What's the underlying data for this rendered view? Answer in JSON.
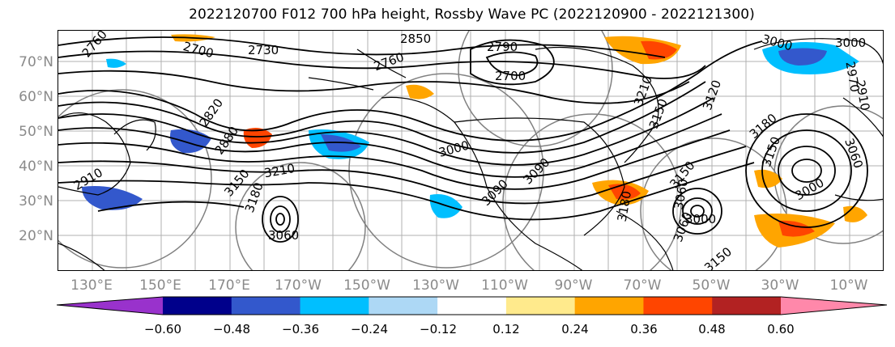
{
  "title": "2022120700 F012 700 hPa height, Rossby Wave PC (2022120900 - 2022121300)",
  "lat_labels": [
    "70°N",
    "60°N",
    "50°N",
    "40°N",
    "30°N",
    "20°N"
  ],
  "lon_labels": [
    "130°E",
    "150°E",
    "170°E",
    "170°W",
    "150°W",
    "130°W",
    "110°W",
    "90°W",
    "70°W",
    "50°W",
    "30°W",
    "10°W"
  ],
  "contour_labels": [
    "2760",
    "2700",
    "2730",
    "2850",
    "2760",
    "2790",
    "2700",
    "3000",
    "3000",
    "2820",
    "2880",
    "3000",
    "3150",
    "3210",
    "3180",
    "3060",
    "3090",
    "3150",
    "3060",
    "3000",
    "3150",
    "3180",
    "3060",
    "3150",
    "3060",
    "3000",
    "2910",
    "2970",
    "3210",
    "3150",
    "3120",
    "3090",
    "3180",
    "2910"
  ],
  "colorbar": {
    "colors": [
      "#9932cc",
      "#00008b",
      "#3358cc",
      "#00bfff",
      "#add8f5",
      "#ffffff",
      "#ffea8c",
      "#ffa500",
      "#ff4500",
      "#b22222",
      "#ff88aa"
    ],
    "tick_labels": [
      "−0.60",
      "−0.48",
      "−0.36",
      "−0.24",
      "−0.12",
      "0.12",
      "0.24",
      "0.36",
      "0.48",
      "0.60"
    ]
  }
}
